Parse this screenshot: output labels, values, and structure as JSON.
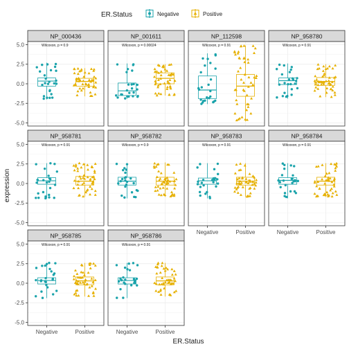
{
  "colors": {
    "negative": "#1AA3AB",
    "positive": "#E6B000",
    "strip_fill": "#D9D9D9",
    "panel_border": "#333333",
    "grid": "#EBEBEB"
  },
  "chart_data": {
    "type": "boxplot",
    "legend": {
      "title": "ER.Status",
      "position": "top",
      "items": [
        {
          "label": "Negative",
          "shape": "circle",
          "color": "#1AA3AB"
        },
        {
          "label": "Positive",
          "shape": "triangle",
          "color": "#E6B000"
        }
      ]
    },
    "xlabel": "ER.Status",
    "ylabel": "expression",
    "x_categories": [
      "Negative",
      "Positive"
    ],
    "y_ticks": [
      -5.0,
      -2.5,
      0.0,
      2.5,
      5.0
    ],
    "y_tick_labels": [
      "-5.0",
      "-2.5",
      "0.0",
      "2.5",
      "5.0"
    ],
    "ylim": [
      -5.4,
      5.4
    ],
    "grid": true,
    "layout": {
      "columns": 4,
      "rows": 3
    },
    "panels": [
      {
        "name": "NP_000436",
        "stat": "Wilcoxon, p = 0.9",
        "groups": [
          {
            "group": "Negative",
            "q1": -0.3,
            "median": 0.35,
            "q3": 0.75,
            "whisker_low": -2.0,
            "whisker_high": 2.7,
            "n": 25
          },
          {
            "group": "Positive",
            "q1": -0.3,
            "median": 0.3,
            "q3": 0.7,
            "whisker_low": -1.6,
            "whisker_high": 2.0,
            "n": 50
          }
        ]
      },
      {
        "name": "NP_001611",
        "stat": "Wilcoxon, p = 0.00024",
        "groups": [
          {
            "group": "Negative",
            "q1": -1.5,
            "median": -0.9,
            "q3": 0.1,
            "whisker_low": -1.9,
            "whisker_high": 2.6,
            "n": 25
          },
          {
            "group": "Positive",
            "q1": 0.0,
            "median": 0.7,
            "q3": 1.4,
            "whisker_low": -1.5,
            "whisker_high": 2.5,
            "n": 50
          }
        ]
      },
      {
        "name": "NP_112598",
        "stat": "Wilcoxon, p = 0.91",
        "groups": [
          {
            "group": "Negative",
            "q1": -1.9,
            "median": -0.8,
            "q3": 1.0,
            "whisker_low": -2.6,
            "whisker_high": 3.9,
            "n": 25
          },
          {
            "group": "Positive",
            "q1": -1.6,
            "median": -0.3,
            "q3": 1.2,
            "whisker_low": -4.8,
            "whisker_high": 4.9,
            "n": 50
          }
        ]
      },
      {
        "name": "NP_958780",
        "stat": "Wilcoxon, p = 0.91",
        "groups": [
          {
            "group": "Negative",
            "q1": -0.1,
            "median": 0.4,
            "q3": 0.75,
            "whisker_low": -1.9,
            "whisker_high": 2.6,
            "n": 25
          },
          {
            "group": "Positive",
            "q1": -0.2,
            "median": 0.3,
            "q3": 0.8,
            "whisker_low": -1.7,
            "whisker_high": 2.5,
            "n": 50
          }
        ]
      },
      {
        "name": "NP_958781",
        "stat": "Wilcoxon, p = 0.91",
        "groups": [
          {
            "group": "Negative",
            "q1": -0.1,
            "median": 0.35,
            "q3": 0.75,
            "whisker_low": -1.9,
            "whisker_high": 2.6,
            "n": 25
          },
          {
            "group": "Positive",
            "q1": -0.2,
            "median": 0.3,
            "q3": 0.9,
            "whisker_low": -1.7,
            "whisker_high": 2.6,
            "n": 50
          }
        ]
      },
      {
        "name": "NP_958782",
        "stat": "Wilcoxon, p = 0.9",
        "groups": [
          {
            "group": "Negative",
            "q1": -0.2,
            "median": 0.3,
            "q3": 0.8,
            "whisker_low": -1.9,
            "whisker_high": 2.6,
            "n": 25
          },
          {
            "group": "Positive",
            "q1": -0.2,
            "median": 0.3,
            "q3": 0.8,
            "whisker_low": -1.7,
            "whisker_high": 2.7,
            "n": 50
          }
        ]
      },
      {
        "name": "NP_958783",
        "stat": "Wilcoxon, p = 0.91",
        "groups": [
          {
            "group": "Negative",
            "q1": -0.1,
            "median": 0.35,
            "q3": 0.7,
            "whisker_low": -1.9,
            "whisker_high": 2.6,
            "n": 25
          },
          {
            "group": "Positive",
            "q1": -0.2,
            "median": 0.3,
            "q3": 0.8,
            "whisker_low": -1.7,
            "whisker_high": 2.6,
            "n": 50
          }
        ]
      },
      {
        "name": "NP_958784",
        "stat": "Wilcoxon, p = 0.91",
        "groups": [
          {
            "group": "Negative",
            "q1": -0.1,
            "median": 0.4,
            "q3": 0.75,
            "whisker_low": -1.9,
            "whisker_high": 2.6,
            "n": 25
          },
          {
            "group": "Positive",
            "q1": -0.2,
            "median": 0.3,
            "q3": 0.8,
            "whisker_low": -1.7,
            "whisker_high": 2.6,
            "n": 50
          }
        ]
      },
      {
        "name": "NP_958785",
        "stat": "Wilcoxon, p = 0.91",
        "groups": [
          {
            "group": "Negative",
            "q1": -0.1,
            "median": 0.35,
            "q3": 0.7,
            "whisker_low": -1.9,
            "whisker_high": 2.6,
            "n": 25
          },
          {
            "group": "Positive",
            "q1": -0.2,
            "median": 0.3,
            "q3": 0.8,
            "whisker_low": -1.7,
            "whisker_high": 2.6,
            "n": 50
          }
        ]
      },
      {
        "name": "NP_958786",
        "stat": "Wilcoxon, p = 0.91",
        "groups": [
          {
            "group": "Negative",
            "q1": -0.1,
            "median": 0.35,
            "q3": 0.7,
            "whisker_low": -1.9,
            "whisker_high": 2.6,
            "n": 25
          },
          {
            "group": "Positive",
            "q1": -0.2,
            "median": 0.3,
            "q3": 0.8,
            "whisker_low": -1.7,
            "whisker_high": 2.6,
            "n": 50
          }
        ]
      }
    ]
  }
}
